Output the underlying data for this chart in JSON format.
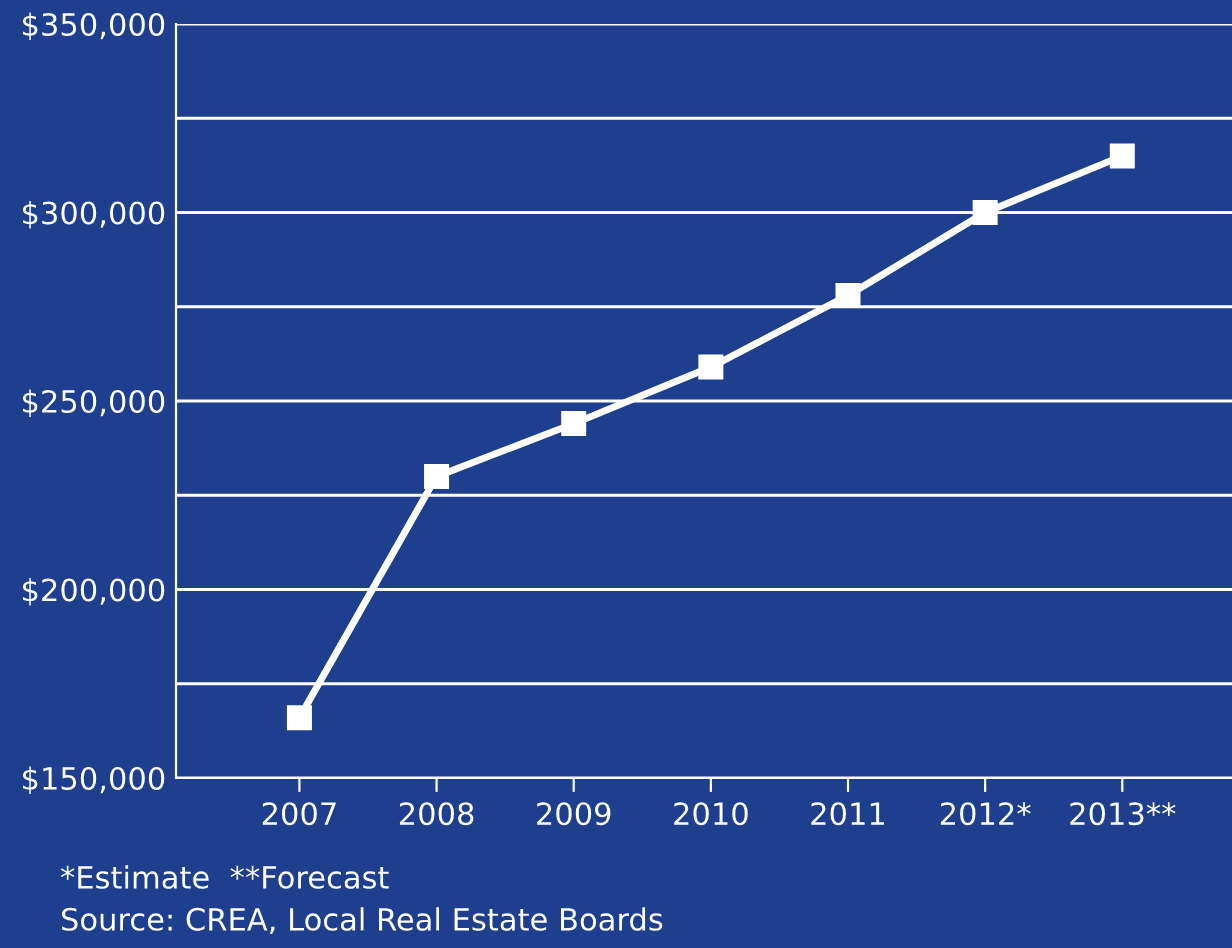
{
  "chart_data": {
    "type": "line",
    "categories": [
      "2007",
      "2008",
      "2009",
      "2010",
      "2011",
      "2012*",
      "2013**"
    ],
    "series": [
      {
        "color": "#ffffff",
        "values": [
          166000,
          230000,
          244000,
          259000,
          278000,
          300000,
          315000
        ]
      }
    ],
    "ylim": [
      150000,
      350000
    ],
    "yticks": [
      {
        "value": 150000,
        "label": "$150,000"
      },
      {
        "value": 175000,
        "label": null
      },
      {
        "value": 200000,
        "label": "$200,000"
      },
      {
        "value": 225000,
        "label": null
      },
      {
        "value": 250000,
        "label": "$250,000"
      },
      {
        "value": 275000,
        "label": null
      },
      {
        "value": 300000,
        "label": "$300,000"
      },
      {
        "value": 325000,
        "label": null
      },
      {
        "value": 350000,
        "label": "$350,000"
      }
    ],
    "grid": "y",
    "marker": "square",
    "line_style": "solid",
    "annotations": [
      "*Estimate  **Forecast",
      "Source: CREA, Local Real Estate Boards"
    ]
  }
}
